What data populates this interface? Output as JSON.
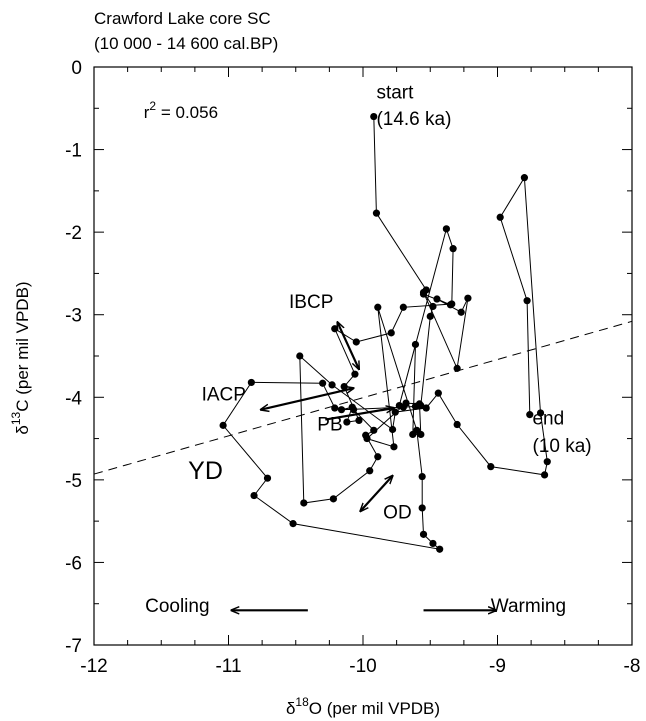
{
  "chart_data": {
    "type": "scatter",
    "title_lines": [
      "Crawford Lake core SC",
      "(10 000 - 14 600 cal.BP)"
    ],
    "xlabel_base": "δ",
    "xlabel_sup": "18",
    "xlabel_rest": "O (per mil VPDB)",
    "ylabel_base": "δ",
    "ylabel_sup": "13",
    "ylabel_rest": "C (per mil VPDB)",
    "xlim": [
      -12,
      -8
    ],
    "ylim": [
      -7,
      0
    ],
    "x_ticks": [
      -12,
      -11,
      -10,
      -9,
      -8
    ],
    "y_ticks": [
      0,
      -1,
      -2,
      -3,
      -4,
      -5,
      -6,
      -7
    ],
    "x_tick_labels": [
      "-12",
      "-11",
      "-10",
      "-9",
      "-8"
    ],
    "y_tick_labels": [
      "0",
      "-1",
      "-2",
      "-3",
      "-4",
      "-5",
      "-6",
      "-7"
    ],
    "grid": false,
    "legend": "none",
    "r2_text": {
      "base": "r",
      "sup": "2",
      "rest": " = 0.056"
    },
    "regression": {
      "x": [
        -12,
        -8
      ],
      "y": [
        -4.93,
        -3.08
      ],
      "style": "dashed"
    },
    "series": [
      {
        "connected": true,
        "points": [
          [
            -9.92,
            -0.6
          ],
          [
            -9.9,
            -1.77
          ],
          [
            -9.53,
            -2.7
          ],
          [
            -9.55,
            -2.75
          ],
          [
            -9.35,
            -2.88
          ],
          [
            -9.45,
            -2.81
          ],
          [
            -9.27,
            -2.97
          ],
          [
            -9.22,
            -2.8
          ],
          [
            -9.3,
            -3.65
          ],
          [
            -9.55,
            -2.73
          ],
          [
            -9.48,
            -2.9
          ],
          [
            -9.5,
            -3.02
          ],
          [
            -9.57,
            -4.1
          ],
          [
            -9.61,
            -4.11
          ],
          [
            -9.7,
            -4.12
          ],
          [
            -10.16,
            -4.15
          ],
          [
            -10.08,
            -4.12
          ],
          [
            -10.12,
            -4.3
          ],
          [
            -10.03,
            -4.28
          ],
          [
            -10.14,
            -3.87
          ],
          [
            -10.06,
            -3.72
          ],
          [
            -10.21,
            -3.17
          ],
          [
            -10.05,
            -3.33
          ],
          [
            -9.79,
            -3.22
          ],
          [
            -9.7,
            -2.91
          ],
          [
            -9.34,
            -2.87
          ],
          [
            -9.33,
            -2.2
          ],
          [
            -9.38,
            -1.96
          ],
          [
            -9.73,
            -4.1
          ],
          [
            -9.61,
            -3.36
          ],
          [
            -9.63,
            -4.45
          ],
          [
            -9.57,
            -4.45
          ],
          [
            -9.58,
            -4.08
          ],
          [
            -9.68,
            -4.07
          ],
          [
            -9.97,
            -4.5
          ],
          [
            -9.77,
            -4.6
          ],
          [
            -9.89,
            -2.91
          ],
          [
            -9.6,
            -4.4
          ],
          [
            -9.56,
            -4.96
          ],
          [
            -9.56,
            -5.34
          ],
          [
            -9.55,
            -5.66
          ],
          [
            -9.48,
            -5.77
          ],
          [
            -9.43,
            -5.84
          ],
          [
            -10.52,
            -5.53
          ],
          [
            -10.81,
            -5.19
          ],
          [
            -10.71,
            -4.98
          ],
          [
            -11.04,
            -4.34
          ],
          [
            -10.83,
            -3.82
          ],
          [
            -10.3,
            -3.83
          ],
          [
            -10.21,
            -4.13
          ],
          [
            -10.07,
            -4.15
          ],
          [
            -9.92,
            -4.4
          ],
          [
            -9.98,
            -4.46
          ],
          [
            -9.89,
            -4.72
          ],
          [
            -9.95,
            -4.89
          ],
          [
            -10.22,
            -5.23
          ],
          [
            -10.44,
            -5.28
          ],
          [
            -10.47,
            -3.5
          ],
          [
            -10.23,
            -3.85
          ],
          [
            -9.78,
            -4.39
          ],
          [
            -9.76,
            -4.18
          ],
          [
            -9.53,
            -4.13
          ],
          [
            -9.44,
            -3.95
          ],
          [
            -9.3,
            -4.33
          ],
          [
            -9.05,
            -4.84
          ],
          [
            -8.65,
            -4.94
          ],
          [
            -8.63,
            -4.78
          ],
          [
            -8.68,
            -4.19
          ],
          [
            -8.8,
            -1.34
          ],
          [
            -8.98,
            -1.82
          ],
          [
            -8.78,
            -2.83
          ],
          [
            -8.76,
            -4.21
          ]
        ]
      }
    ],
    "annotations": [
      {
        "text": "start",
        "x": -9.9,
        "y": -0.38,
        "size": 19
      },
      {
        "text": "(14.6 ka)",
        "x": -9.9,
        "y": -0.7,
        "size": 19
      },
      {
        "text": "end",
        "x": -8.74,
        "y": -4.33,
        "size": 19
      },
      {
        "text": "(10 ka)",
        "x": -8.74,
        "y": -4.66,
        "size": 19
      },
      {
        "text": "IBCP",
        "x": -10.55,
        "y": -2.92,
        "size": 19
      },
      {
        "text": "IACP",
        "x": -11.2,
        "y": -4.04,
        "size": 19
      },
      {
        "text": "PB",
        "x": -10.34,
        "y": -4.4,
        "size": 19
      },
      {
        "text": "YD",
        "x": -11.3,
        "y": -4.99,
        "size": 25
      },
      {
        "text": "OD",
        "x": -9.85,
        "y": -5.47,
        "size": 19
      },
      {
        "text": "Cooling",
        "x": -11.62,
        "y": -6.6,
        "size": 19
      },
      {
        "text": "Warming",
        "x": -9.05,
        "y": -6.6,
        "size": 19
      }
    ],
    "arrows": [
      {
        "x1": -10.19,
        "y1": -3.09,
        "x2": -10.03,
        "y2": -3.66,
        "double": true
      },
      {
        "x1": -10.76,
        "y1": -4.15,
        "x2": -10.07,
        "y2": -3.89,
        "double": true
      },
      {
        "x1": -10.28,
        "y1": -4.27,
        "x2": -9.77,
        "y2": -4.13,
        "double": false
      },
      {
        "x1": -9.78,
        "y1": -4.95,
        "x2": -10.02,
        "y2": -5.38,
        "double": true
      },
      {
        "x1": -10.41,
        "y1": -6.58,
        "x2": -10.98,
        "y2": -6.58,
        "double": false
      },
      {
        "x1": -9.55,
        "y1": -6.58,
        "x2": -9.01,
        "y2": -6.58,
        "double": false
      }
    ]
  }
}
